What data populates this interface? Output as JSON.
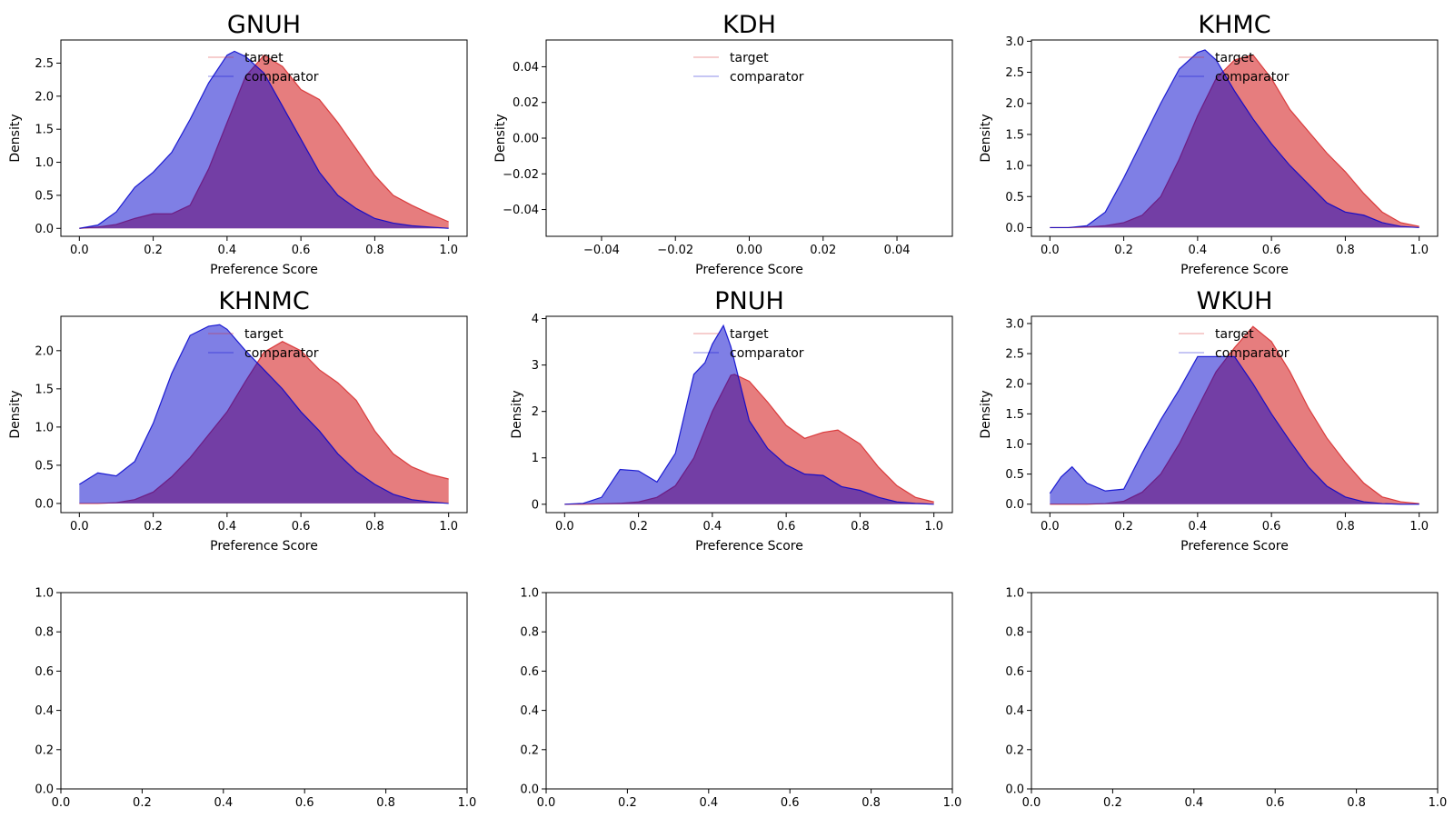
{
  "colors": {
    "target_fill": "#d62728",
    "target_line": "#d62728",
    "comparator_fill": "#0000cc",
    "comparator_line": "#0000cc",
    "overlap": "#6a2c8a"
  },
  "chart_data": [
    {
      "type": "area",
      "title": "GNUH",
      "xlabel": "Preference Score",
      "ylabel": "Density",
      "xlim": [
        -0.05,
        1.05
      ],
      "ylim": [
        -0.12,
        2.85
      ],
      "xticks": [
        0.0,
        0.2,
        0.4,
        0.6,
        0.8,
        1.0
      ],
      "xtick_labels": [
        "0.0",
        "0.2",
        "0.4",
        "0.6",
        "0.8",
        "1.0"
      ],
      "yticks": [
        0.0,
        0.5,
        1.0,
        1.5,
        2.0,
        2.5
      ],
      "ytick_labels": [
        "0.0",
        "0.5",
        "1.0",
        "1.5",
        "2.0",
        "2.5"
      ],
      "legend": {
        "position": "top-center",
        "entries": [
          "target",
          "comparator"
        ]
      },
      "series": [
        {
          "name": "target",
          "x": [
            0.0,
            0.05,
            0.1,
            0.15,
            0.2,
            0.25,
            0.3,
            0.35,
            0.4,
            0.45,
            0.5,
            0.55,
            0.6,
            0.65,
            0.7,
            0.75,
            0.8,
            0.85,
            0.9,
            0.95,
            1.0
          ],
          "y": [
            0.0,
            0.02,
            0.06,
            0.15,
            0.22,
            0.22,
            0.35,
            0.9,
            1.6,
            2.3,
            2.62,
            2.45,
            2.1,
            1.95,
            1.6,
            1.2,
            0.8,
            0.5,
            0.35,
            0.22,
            0.1
          ]
        },
        {
          "name": "comparator",
          "x": [
            0.0,
            0.05,
            0.1,
            0.15,
            0.2,
            0.25,
            0.3,
            0.35,
            0.4,
            0.42,
            0.45,
            0.5,
            0.55,
            0.6,
            0.65,
            0.7,
            0.75,
            0.8,
            0.85,
            0.9,
            0.95,
            1.0
          ],
          "y": [
            0.0,
            0.05,
            0.25,
            0.62,
            0.85,
            1.15,
            1.65,
            2.2,
            2.62,
            2.68,
            2.6,
            2.35,
            1.85,
            1.35,
            0.85,
            0.5,
            0.3,
            0.15,
            0.08,
            0.04,
            0.02,
            0.0
          ]
        }
      ]
    },
    {
      "type": "area",
      "title": "KDH",
      "xlabel": "Preference Score",
      "ylabel": "Density",
      "xlim": [
        -0.055,
        0.055
      ],
      "ylim": [
        -0.055,
        0.055
      ],
      "xticks": [
        -0.04,
        -0.02,
        0.0,
        0.02,
        0.04
      ],
      "xtick_labels": [
        "−0.04",
        "−0.02",
        "0.00",
        "0.02",
        "0.04"
      ],
      "yticks": [
        -0.04,
        -0.02,
        0.0,
        0.02,
        0.04
      ],
      "ytick_labels": [
        "−0.04",
        "−0.02",
        "0.00",
        "0.02",
        "0.04"
      ],
      "legend": {
        "position": "top-center",
        "entries": [
          "target",
          "comparator"
        ]
      },
      "series": [
        {
          "name": "target",
          "x": [],
          "y": []
        },
        {
          "name": "comparator",
          "x": [],
          "y": []
        }
      ]
    },
    {
      "type": "area",
      "title": "KHMC",
      "xlabel": "Preference Score",
      "ylabel": "Density",
      "xlim": [
        -0.05,
        1.05
      ],
      "ylim": [
        -0.14,
        3.02
      ],
      "xticks": [
        0.0,
        0.2,
        0.4,
        0.6,
        0.8,
        1.0
      ],
      "xtick_labels": [
        "0.0",
        "0.2",
        "0.4",
        "0.6",
        "0.8",
        "1.0"
      ],
      "yticks": [
        0.0,
        0.5,
        1.0,
        1.5,
        2.0,
        2.5,
        3.0
      ],
      "ytick_labels": [
        "0.0",
        "0.5",
        "1.0",
        "1.5",
        "2.0",
        "2.5",
        "3.0"
      ],
      "legend": {
        "position": "top-center",
        "entries": [
          "target",
          "comparator"
        ]
      },
      "series": [
        {
          "name": "target",
          "x": [
            0.0,
            0.05,
            0.1,
            0.15,
            0.2,
            0.25,
            0.3,
            0.35,
            0.4,
            0.45,
            0.5,
            0.55,
            0.6,
            0.65,
            0.7,
            0.75,
            0.8,
            0.85,
            0.9,
            0.95,
            1.0
          ],
          "y": [
            0.0,
            0.0,
            0.01,
            0.03,
            0.08,
            0.2,
            0.5,
            1.1,
            1.8,
            2.4,
            2.7,
            2.78,
            2.4,
            1.9,
            1.55,
            1.2,
            0.9,
            0.55,
            0.25,
            0.08,
            0.02
          ]
        },
        {
          "name": "comparator",
          "x": [
            0.0,
            0.05,
            0.1,
            0.15,
            0.2,
            0.25,
            0.3,
            0.35,
            0.4,
            0.42,
            0.45,
            0.5,
            0.55,
            0.6,
            0.65,
            0.7,
            0.75,
            0.8,
            0.85,
            0.9,
            0.95,
            1.0
          ],
          "y": [
            0.0,
            0.0,
            0.03,
            0.25,
            0.8,
            1.4,
            2.0,
            2.55,
            2.82,
            2.86,
            2.7,
            2.2,
            1.75,
            1.35,
            1.0,
            0.7,
            0.4,
            0.25,
            0.2,
            0.08,
            0.02,
            0.0
          ]
        }
      ]
    },
    {
      "type": "area",
      "title": "KHNMC",
      "xlabel": "Preference Score",
      "ylabel": "Density",
      "xlim": [
        -0.05,
        1.05
      ],
      "ylim": [
        -0.12,
        2.45
      ],
      "xticks": [
        0.0,
        0.2,
        0.4,
        0.6,
        0.8,
        1.0
      ],
      "xtick_labels": [
        "0.0",
        "0.2",
        "0.4",
        "0.6",
        "0.8",
        "1.0"
      ],
      "yticks": [
        0.0,
        0.5,
        1.0,
        1.5,
        2.0
      ],
      "ytick_labels": [
        "0.0",
        "0.5",
        "1.0",
        "1.5",
        "2.0"
      ],
      "legend": {
        "position": "top-center",
        "entries": [
          "target",
          "comparator"
        ]
      },
      "series": [
        {
          "name": "target",
          "x": [
            0.0,
            0.05,
            0.1,
            0.15,
            0.2,
            0.25,
            0.3,
            0.35,
            0.4,
            0.45,
            0.5,
            0.55,
            0.6,
            0.65,
            0.7,
            0.75,
            0.8,
            0.85,
            0.9,
            0.95,
            1.0
          ],
          "y": [
            0.0,
            0.0,
            0.01,
            0.05,
            0.15,
            0.35,
            0.6,
            0.9,
            1.2,
            1.6,
            1.98,
            2.12,
            2.0,
            1.75,
            1.58,
            1.35,
            0.95,
            0.65,
            0.48,
            0.38,
            0.32
          ]
        },
        {
          "name": "comparator",
          "x": [
            0.0,
            0.05,
            0.1,
            0.15,
            0.2,
            0.25,
            0.3,
            0.35,
            0.38,
            0.4,
            0.45,
            0.5,
            0.55,
            0.6,
            0.65,
            0.7,
            0.75,
            0.8,
            0.85,
            0.9,
            0.95,
            1.0
          ],
          "y": [
            0.25,
            0.4,
            0.36,
            0.55,
            1.05,
            1.7,
            2.2,
            2.32,
            2.34,
            2.28,
            2.0,
            1.75,
            1.5,
            1.2,
            0.95,
            0.65,
            0.42,
            0.25,
            0.12,
            0.05,
            0.02,
            0.0
          ]
        }
      ]
    },
    {
      "type": "area",
      "title": "PNUH",
      "xlabel": "Preference Score",
      "ylabel": "Density",
      "xlim": [
        -0.05,
        1.05
      ],
      "ylim": [
        -0.18,
        4.05
      ],
      "xticks": [
        0.0,
        0.2,
        0.4,
        0.6,
        0.8,
        1.0
      ],
      "xtick_labels": [
        "0.0",
        "0.2",
        "0.4",
        "0.6",
        "0.8",
        "1.0"
      ],
      "yticks": [
        0,
        1,
        2,
        3,
        4
      ],
      "ytick_labels": [
        "0",
        "1",
        "2",
        "3",
        "4"
      ],
      "legend": {
        "position": "top-center",
        "entries": [
          "target",
          "comparator"
        ]
      },
      "series": [
        {
          "name": "target",
          "x": [
            0.0,
            0.05,
            0.1,
            0.15,
            0.2,
            0.25,
            0.3,
            0.35,
            0.4,
            0.45,
            0.46,
            0.5,
            0.55,
            0.6,
            0.65,
            0.7,
            0.74,
            0.8,
            0.85,
            0.9,
            0.95,
            1.0
          ],
          "y": [
            0.0,
            0.0,
            0.01,
            0.02,
            0.05,
            0.15,
            0.4,
            1.0,
            2.0,
            2.78,
            2.8,
            2.65,
            2.2,
            1.7,
            1.42,
            1.55,
            1.6,
            1.3,
            0.8,
            0.4,
            0.15,
            0.05
          ]
        },
        {
          "name": "comparator",
          "x": [
            0.0,
            0.05,
            0.1,
            0.15,
            0.2,
            0.25,
            0.3,
            0.35,
            0.38,
            0.4,
            0.43,
            0.45,
            0.5,
            0.55,
            0.6,
            0.65,
            0.7,
            0.75,
            0.8,
            0.85,
            0.9,
            0.95,
            1.0
          ],
          "y": [
            0.0,
            0.02,
            0.15,
            0.75,
            0.72,
            0.48,
            1.1,
            2.8,
            3.05,
            3.45,
            3.85,
            3.4,
            1.8,
            1.2,
            0.85,
            0.65,
            0.62,
            0.38,
            0.3,
            0.15,
            0.05,
            0.02,
            0.0
          ]
        }
      ]
    },
    {
      "type": "area",
      "title": "WKUH",
      "xlabel": "Preference Score",
      "ylabel": "Density",
      "xlim": [
        -0.05,
        1.05
      ],
      "ylim": [
        -0.14,
        3.12
      ],
      "xticks": [
        0.0,
        0.2,
        0.4,
        0.6,
        0.8,
        1.0
      ],
      "xtick_labels": [
        "0.0",
        "0.2",
        "0.4",
        "0.6",
        "0.8",
        "1.0"
      ],
      "yticks": [
        0.0,
        0.5,
        1.0,
        1.5,
        2.0,
        2.5,
        3.0
      ],
      "ytick_labels": [
        "0.0",
        "0.5",
        "1.0",
        "1.5",
        "2.0",
        "2.5",
        "3.0"
      ],
      "legend": {
        "position": "top-center",
        "entries": [
          "target",
          "comparator"
        ]
      },
      "series": [
        {
          "name": "target",
          "x": [
            0.0,
            0.05,
            0.1,
            0.15,
            0.2,
            0.25,
            0.3,
            0.35,
            0.4,
            0.45,
            0.5,
            0.55,
            0.6,
            0.65,
            0.7,
            0.75,
            0.8,
            0.85,
            0.9,
            0.95,
            1.0
          ],
          "y": [
            0.0,
            0.0,
            0.0,
            0.01,
            0.05,
            0.2,
            0.5,
            1.0,
            1.6,
            2.2,
            2.6,
            2.95,
            2.7,
            2.2,
            1.6,
            1.1,
            0.7,
            0.35,
            0.12,
            0.04,
            0.01
          ]
        },
        {
          "name": "comparator",
          "x": [
            0.0,
            0.03,
            0.06,
            0.1,
            0.15,
            0.2,
            0.25,
            0.3,
            0.35,
            0.4,
            0.45,
            0.5,
            0.55,
            0.6,
            0.65,
            0.7,
            0.75,
            0.8,
            0.85,
            0.9,
            0.95,
            1.0
          ],
          "y": [
            0.18,
            0.45,
            0.62,
            0.35,
            0.22,
            0.25,
            0.85,
            1.4,
            1.9,
            2.45,
            2.45,
            2.45,
            2.0,
            1.5,
            1.05,
            0.62,
            0.3,
            0.12,
            0.04,
            0.01,
            0.0,
            0.0
          ]
        }
      ]
    },
    {
      "type": "line",
      "title": "",
      "xlabel": "",
      "ylabel": "",
      "xlim": [
        0.0,
        1.0
      ],
      "ylim": [
        0.0,
        1.0
      ],
      "xticks": [
        0.0,
        0.2,
        0.4,
        0.6,
        0.8,
        1.0
      ],
      "xtick_labels": [
        "0.0",
        "0.2",
        "0.4",
        "0.6",
        "0.8",
        "1.0"
      ],
      "yticks": [
        0.0,
        0.2,
        0.4,
        0.6,
        0.8,
        1.0
      ],
      "ytick_labels": [
        "0.0",
        "0.2",
        "0.4",
        "0.6",
        "0.8",
        "1.0"
      ],
      "series": []
    },
    {
      "type": "line",
      "title": "",
      "xlabel": "",
      "ylabel": "",
      "xlim": [
        0.0,
        1.0
      ],
      "ylim": [
        0.0,
        1.0
      ],
      "xticks": [
        0.0,
        0.2,
        0.4,
        0.6,
        0.8,
        1.0
      ],
      "xtick_labels": [
        "0.0",
        "0.2",
        "0.4",
        "0.6",
        "0.8",
        "1.0"
      ],
      "yticks": [
        0.0,
        0.2,
        0.4,
        0.6,
        0.8,
        1.0
      ],
      "ytick_labels": [
        "0.0",
        "0.2",
        "0.4",
        "0.6",
        "0.8",
        "1.0"
      ],
      "series": []
    },
    {
      "type": "line",
      "title": "",
      "xlabel": "",
      "ylabel": "",
      "xlim": [
        0.0,
        1.0
      ],
      "ylim": [
        0.0,
        1.0
      ],
      "xticks": [
        0.0,
        0.2,
        0.4,
        0.6,
        0.8,
        1.0
      ],
      "xtick_labels": [
        "0.0",
        "0.2",
        "0.4",
        "0.6",
        "0.8",
        "1.0"
      ],
      "yticks": [
        0.0,
        0.2,
        0.4,
        0.6,
        0.8,
        1.0
      ],
      "ytick_labels": [
        "0.0",
        "0.2",
        "0.4",
        "0.6",
        "0.8",
        "1.0"
      ],
      "series": []
    }
  ]
}
